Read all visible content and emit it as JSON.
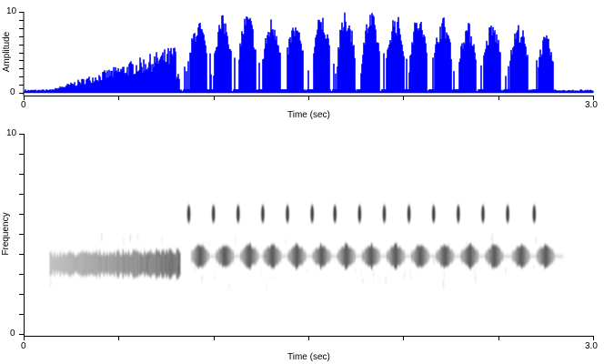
{
  "colors": {
    "waveform": "#0000ff",
    "axis": "#000000",
    "spectrogram_ink": "#000000",
    "background": "#ffffff"
  },
  "waveform_panel": {
    "y_axis_title": "Amplitude",
    "x_axis_title": "Time (sec)",
    "y_tick_top": "10",
    "y_tick_bottom": "0",
    "x_tick_left": "0",
    "x_tick_right": "3.0"
  },
  "spectrogram_panel": {
    "y_axis_title": "Frequency",
    "x_axis_title": "Time (sec)",
    "y_tick_top": "10",
    "y_tick_bottom": "0",
    "x_tick_left": "0",
    "x_tick_right": "3.0"
  },
  "chart_data": [
    {
      "type": "area",
      "title": "Waveform amplitude envelope",
      "xlabel": "Time (sec)",
      "ylabel": "Amplitude",
      "xlim": [
        0,
        3.0
      ],
      "ylim": [
        0,
        10
      ],
      "x_ticks": [
        0,
        0.5,
        1.0,
        1.5,
        2.0,
        2.5,
        3.0
      ],
      "x_tick_labels": [
        "0",
        "",
        "",
        "",
        "",
        "",
        "3.0"
      ],
      "y_ticks": [
        0,
        1,
        2,
        3,
        4,
        5,
        6,
        7,
        8,
        9,
        10
      ],
      "y_tick_labels": [
        "0",
        "",
        "",
        "",
        "",
        "",
        "",
        "",
        "",
        "",
        "10"
      ],
      "grid": false,
      "segments": {
        "noise_floor": {
          "start": 0.0,
          "end": 0.2,
          "amplitude": 0.3
        },
        "ramp": {
          "start": 0.15,
          "end": 0.82,
          "start_amplitude": 0.4,
          "end_amplitude": 5.8
        },
        "bursts": [
          {
            "center": 0.92,
            "width": 0.09,
            "peak": 8.6
          },
          {
            "center": 1.05,
            "width": 0.09,
            "peak": 9.2
          },
          {
            "center": 1.18,
            "width": 0.09,
            "peak": 9.5
          },
          {
            "center": 1.31,
            "width": 0.09,
            "peak": 9.0
          },
          {
            "center": 1.43,
            "width": 0.09,
            "peak": 8.3
          },
          {
            "center": 1.57,
            "width": 0.09,
            "peak": 9.3
          },
          {
            "center": 1.7,
            "width": 0.09,
            "peak": 9.6
          },
          {
            "center": 1.83,
            "width": 0.09,
            "peak": 9.5
          },
          {
            "center": 1.96,
            "width": 0.09,
            "peak": 9.4
          },
          {
            "center": 2.08,
            "width": 0.09,
            "peak": 9.2
          },
          {
            "center": 2.21,
            "width": 0.09,
            "peak": 9.0
          },
          {
            "center": 2.34,
            "width": 0.09,
            "peak": 8.3
          },
          {
            "center": 2.47,
            "width": 0.09,
            "peak": 8.3
          },
          {
            "center": 2.61,
            "width": 0.09,
            "peak": 8.2
          },
          {
            "center": 2.75,
            "width": 0.08,
            "peak": 6.8
          }
        ],
        "tail_noise": {
          "start": 2.8,
          "end": 3.0,
          "amplitude": 0.2
        }
      }
    },
    {
      "type": "heatmap",
      "title": "Spectrogram",
      "xlabel": "Time (sec)",
      "ylabel": "Frequency",
      "xlim": [
        0,
        3.0
      ],
      "ylim": [
        0,
        10
      ],
      "x_ticks": [
        0,
        0.5,
        1.0,
        1.5,
        2.0,
        2.5,
        3.0
      ],
      "x_tick_labels": [
        "0",
        "",
        "",
        "",
        "",
        "",
        "3.0"
      ],
      "y_ticks": [
        0,
        1,
        2,
        3,
        4,
        5,
        6,
        7,
        8,
        9,
        10
      ],
      "y_tick_labels": [
        "0",
        "",
        "",
        "",
        "",
        "",
        "",
        "",
        "",
        "",
        "10"
      ],
      "grid": false,
      "continuous_band": {
        "start": 0.14,
        "end": 0.83,
        "frequency": 3.5,
        "bandwidth": 0.9
      },
      "pulses_low": {
        "frequency": 3.7,
        "bandwidth": 0.8,
        "centers": [
          0.93,
          1.06,
          1.19,
          1.31,
          1.44,
          1.57,
          1.7,
          1.83,
          1.96,
          2.09,
          2.22,
          2.35,
          2.48,
          2.62,
          2.75
        ],
        "width": 0.09
      },
      "pulses_high": {
        "frequency": 6.0,
        "bandwidth": 0.9,
        "centers": [
          0.87,
          1.0,
          1.13,
          1.26,
          1.39,
          1.52,
          1.64,
          1.77,
          1.9,
          2.03,
          2.16,
          2.29,
          2.42,
          2.55,
          2.69
        ],
        "width": 0.02
      }
    }
  ]
}
